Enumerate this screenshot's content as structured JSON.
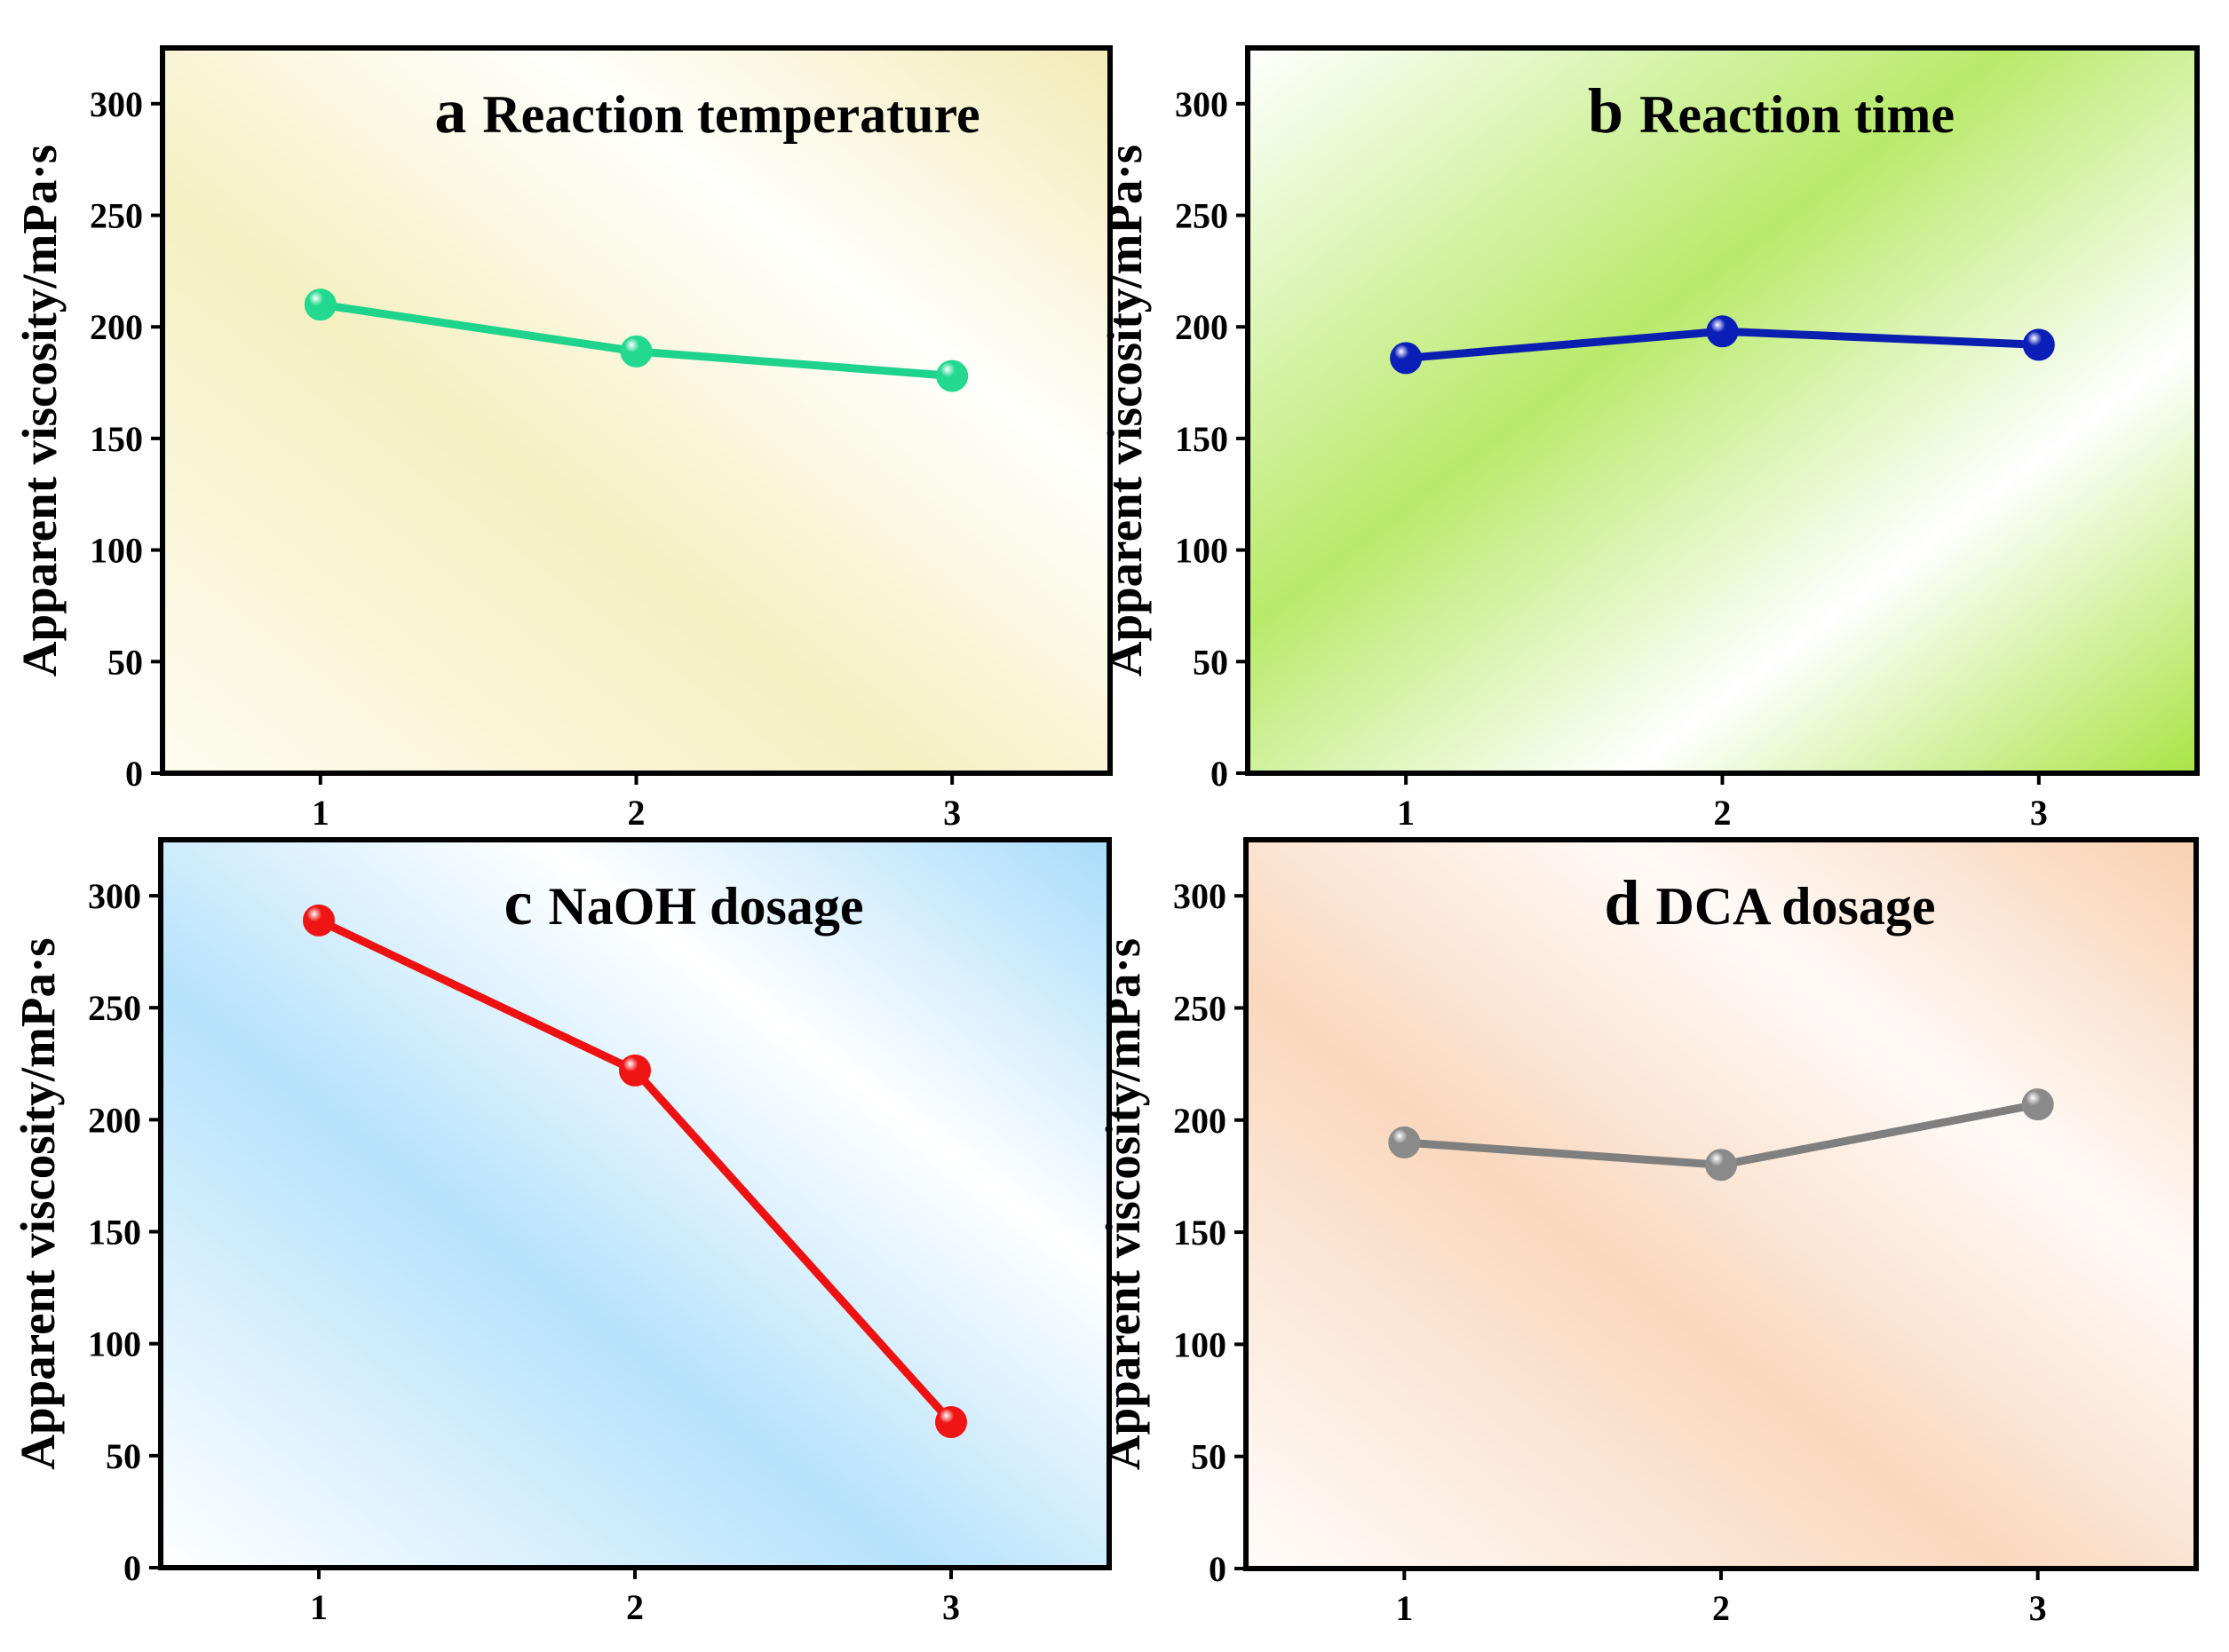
{
  "chart_data": [
    {
      "type": "line",
      "panel": "a",
      "title": "Reaction temperature",
      "ylabel": "Apparent viscosity/mPa·s",
      "xlabel": "",
      "x": [
        1,
        2,
        3
      ],
      "x_tick_labels": [
        "1",
        "2",
        "3"
      ],
      "values": [
        210,
        189,
        178
      ],
      "ylim": [
        0,
        325
      ],
      "xlim": [
        0.5,
        3.5
      ],
      "yticks": [
        0,
        50,
        100,
        150,
        200,
        250,
        300
      ],
      "y_tick_labels": [
        "0",
        "50",
        "100",
        "150",
        "200",
        "250",
        "300"
      ],
      "line_color": "#1ed38c",
      "marker_color": "#22d98f",
      "bg_colors": [
        "#fdfcef",
        "#f5f0c2",
        "#fffffc",
        "#f2ebb5"
      ]
    },
    {
      "type": "line",
      "panel": "b",
      "title": "Reaction time",
      "ylabel": "Apparent viscosity/mPa·s",
      "xlabel": "",
      "x": [
        1,
        2,
        3
      ],
      "x_tick_labels": [
        "1",
        "2",
        "3"
      ],
      "values": [
        186,
        198,
        192
      ],
      "ylim": [
        0,
        325
      ],
      "xlim": [
        0.5,
        3.5
      ],
      "yticks": [
        0,
        50,
        100,
        150,
        200,
        250,
        300
      ],
      "y_tick_labels": [
        "0",
        "50",
        "100",
        "150",
        "200",
        "250",
        "300"
      ],
      "line_color": "#0a1fb0",
      "marker_color": "#0b1fb8",
      "bg_colors": [
        "#ffffff",
        "#b8ea6a",
        "#ffffff",
        "#a9e445"
      ]
    },
    {
      "type": "line",
      "panel": "c",
      "title": "NaOH dosage",
      "ylabel": "Apparent viscosity/mPa·s",
      "xlabel": "",
      "x": [
        1,
        2,
        3
      ],
      "x_tick_labels": [
        "1",
        "2",
        "3"
      ],
      "values": [
        289,
        222,
        65
      ],
      "ylim": [
        0,
        325
      ],
      "xlim": [
        0.5,
        3.5
      ],
      "yticks": [
        0,
        50,
        100,
        150,
        200,
        250,
        300
      ],
      "y_tick_labels": [
        "0",
        "50",
        "100",
        "150",
        "200",
        "250",
        "300"
      ],
      "line_color": "#ee1111",
      "marker_color": "#f01515",
      "bg_colors": [
        "#ffffff",
        "#b6e2fb",
        "#ffffff",
        "#a8dcfa"
      ]
    },
    {
      "type": "line",
      "panel": "d",
      "title": "DCA dosage",
      "ylabel": "Apparent viscosity/mPa·s",
      "xlabel": "",
      "x": [
        1,
        2,
        3
      ],
      "x_tick_labels": [
        "1",
        "2",
        "3"
      ],
      "values": [
        190,
        180,
        207
      ],
      "ylim": [
        0,
        325
      ],
      "xlim": [
        0.5,
        3.5
      ],
      "yticks": [
        0,
        50,
        100,
        150,
        200,
        250,
        300
      ],
      "y_tick_labels": [
        "0",
        "50",
        "100",
        "150",
        "200",
        "250",
        "300"
      ],
      "line_color": "#7f7f7f",
      "marker_color": "#8a8a8a",
      "bg_colors": [
        "#fffcfa",
        "#f9d8be",
        "#fffaf7",
        "#f8d0b0"
      ]
    }
  ]
}
